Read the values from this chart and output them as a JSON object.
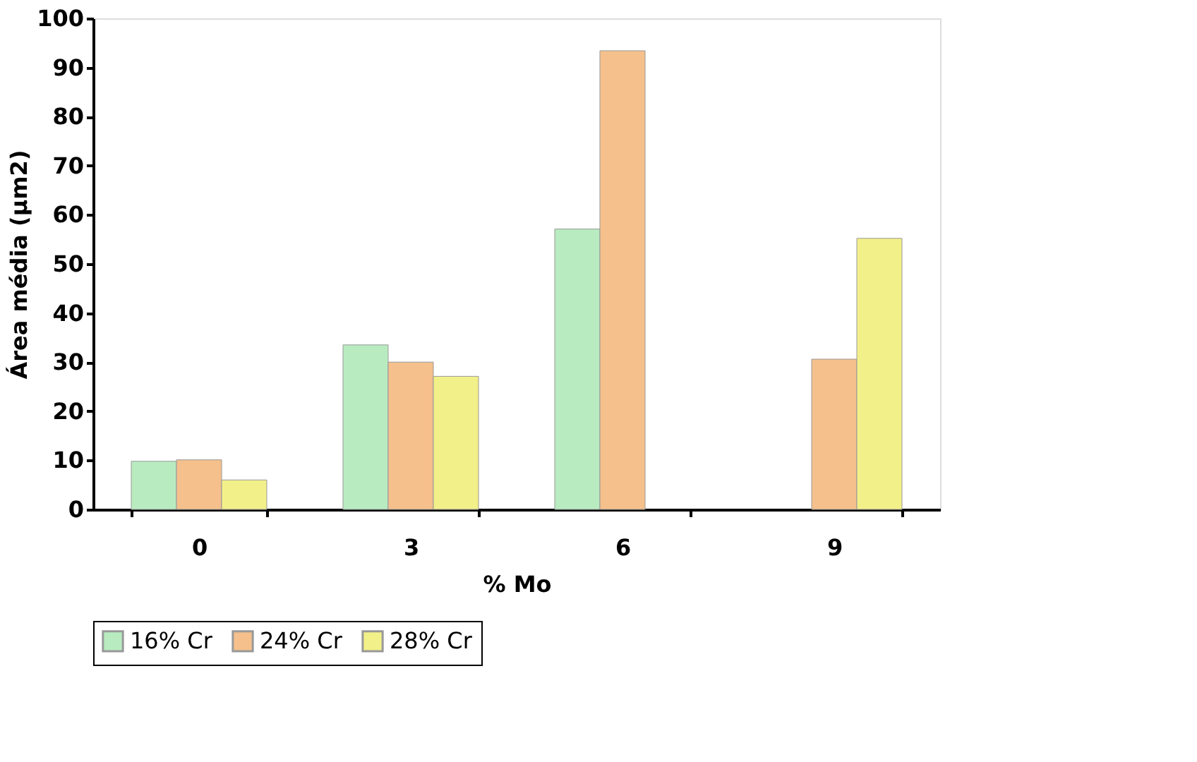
{
  "chart_data": {
    "type": "bar",
    "xlabel": "% Mo",
    "ylabel": "Área média (µm2)",
    "categories": [
      "0",
      "3",
      "6",
      "9"
    ],
    "series": [
      {
        "name": "16% Cr",
        "color": "#b8ecc0",
        "values": [
          9.8,
          33.5,
          57.1,
          null
        ]
      },
      {
        "name": "24% Cr",
        "color": "#f5c08c",
        "values": [
          10.1,
          30.0,
          93.4,
          30.6
        ]
      },
      {
        "name": "28% Cr",
        "color": "#f2f088",
        "values": [
          6.0,
          27.1,
          null,
          55.2
        ]
      }
    ],
    "ylim": [
      0,
      100
    ],
    "yticks": [
      0,
      10,
      20,
      30,
      40,
      50,
      60,
      70,
      80,
      90,
      100
    ],
    "grid": false,
    "legend": "bottom"
  }
}
